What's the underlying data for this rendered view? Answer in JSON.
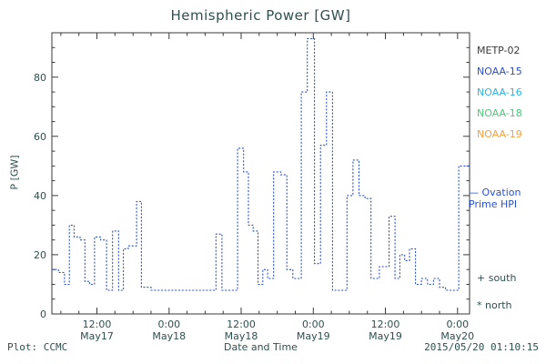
{
  "footer": {
    "plot_credit": "Plot: CCMC",
    "timestamp": "2015/05/20 01:10:15"
  },
  "chart_data": {
    "type": "line",
    "subtype": "dotted-step",
    "title": "Hemispheric Power [GW]",
    "xlabel": "Date and Time",
    "ylabel": "P [GW]",
    "ylim": [
      0,
      95
    ],
    "y_ticks": [
      0,
      20,
      40,
      60,
      80
    ],
    "y_minor_step": 5,
    "x_range_hours": [
      4.5,
      74
    ],
    "x_minor_step": 3,
    "x_ticks": [
      {
        "hour": 12,
        "time": "12:00",
        "date": "May17"
      },
      {
        "hour": 24,
        "time": "0:00",
        "date": "May18"
      },
      {
        "hour": 36,
        "time": "12:00",
        "date": "May18"
      },
      {
        "hour": 48,
        "time": "0:00",
        "date": "May19"
      },
      {
        "hour": 60,
        "time": "12:00",
        "date": "May19"
      },
      {
        "hour": 72,
        "time": "0:00",
        "date": "May20"
      }
    ],
    "line_color": "#2b50cc",
    "axis_color": "#3a3a3a",
    "points": [
      [
        4.5,
        15
      ],
      [
        5.6,
        14
      ],
      [
        6.6,
        10
      ],
      [
        7.4,
        30
      ],
      [
        8.2,
        26
      ],
      [
        9.2,
        25
      ],
      [
        10.0,
        11
      ],
      [
        10.8,
        10
      ],
      [
        11.6,
        26
      ],
      [
        12.6,
        25
      ],
      [
        13.6,
        8
      ],
      [
        14.6,
        28
      ],
      [
        15.6,
        8
      ],
      [
        16.4,
        22
      ],
      [
        17.2,
        23
      ],
      [
        18.6,
        38
      ],
      [
        19.4,
        9
      ],
      [
        21.0,
        8
      ],
      [
        27.0,
        8
      ],
      [
        31.8,
        27
      ],
      [
        32.8,
        8
      ],
      [
        35.4,
        56
      ],
      [
        36.4,
        48
      ],
      [
        37.2,
        30
      ],
      [
        38.0,
        28
      ],
      [
        38.8,
        10
      ],
      [
        39.6,
        15
      ],
      [
        40.4,
        12
      ],
      [
        41.4,
        48
      ],
      [
        42.6,
        47
      ],
      [
        43.6,
        15
      ],
      [
        44.6,
        12
      ],
      [
        46.0,
        75
      ],
      [
        47.0,
        93
      ],
      [
        48.2,
        17
      ],
      [
        49.2,
        57
      ],
      [
        50.2,
        75
      ],
      [
        51.2,
        8
      ],
      [
        53.6,
        40
      ],
      [
        54.6,
        52
      ],
      [
        55.6,
        40
      ],
      [
        56.6,
        39
      ],
      [
        57.6,
        12
      ],
      [
        59.0,
        16
      ],
      [
        60.6,
        33
      ],
      [
        61.6,
        12
      ],
      [
        62.4,
        20
      ],
      [
        63.2,
        18
      ],
      [
        64.0,
        22
      ],
      [
        65.0,
        10
      ],
      [
        66.0,
        12
      ],
      [
        67.0,
        10
      ],
      [
        68.0,
        12
      ],
      [
        69.0,
        9
      ],
      [
        70.0,
        8
      ],
      [
        71.6,
        8
      ],
      [
        72.2,
        50
      ]
    ],
    "legend": {
      "entries": [
        {
          "label": "METP-02",
          "color": "#3a3a3a"
        },
        {
          "label": "NOAA-15",
          "color": "#2b50cc"
        },
        {
          "label": "NOAA-16",
          "color": "#29b6e8"
        },
        {
          "label": "NOAA-18",
          "color": "#49c97a"
        },
        {
          "label": "NOAA-19",
          "color": "#f5a13a"
        }
      ]
    },
    "annotations": {
      "line_label_line1": "— Ovation",
      "line_label_line2": "Prime HPI",
      "line_label_color": "#2b50cc",
      "south": "+ south",
      "north": "* north"
    }
  }
}
